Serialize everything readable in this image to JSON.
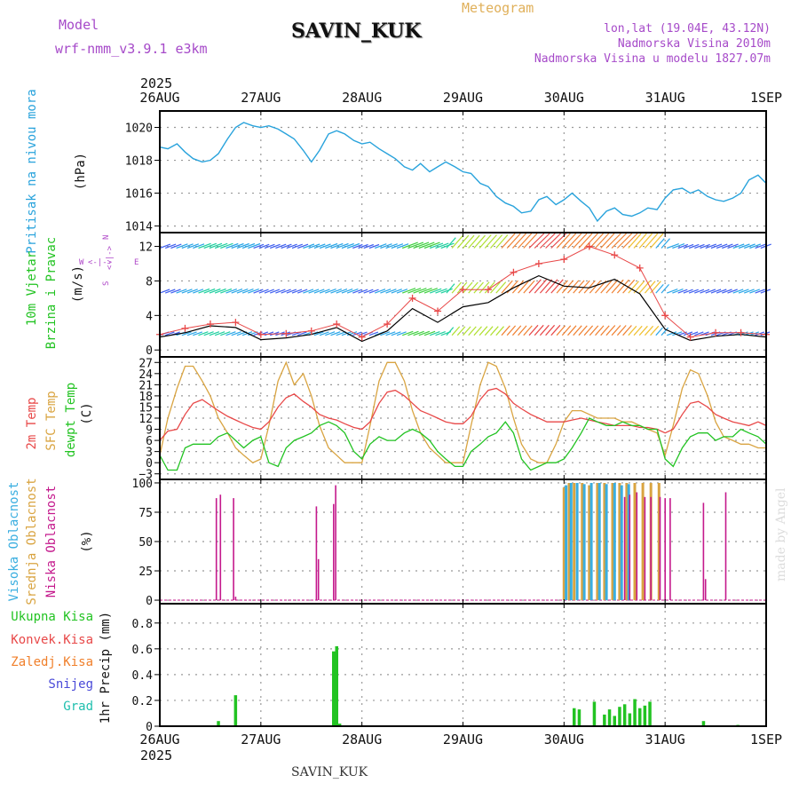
{
  "header": {
    "model_label": "Model",
    "model_value": "wrf-nmm_v3.9.1 e3km",
    "title": "SAVIN_KUK",
    "subtitle": "Meteogram",
    "coords": "lon,lat (19.04E, 43.12N)",
    "altitude": "Nadmorska Visina 2010m",
    "model_altitude": "Nadmorska Visina u modelu 1827.07m",
    "footer_station": "SAVIN_KUK",
    "credit": "made by Angel"
  },
  "colors": {
    "pressure": "#29a3dc",
    "temp2m": "#e84848",
    "sfc_temp": "#d9a441",
    "dewpt": "#22c322",
    "high_cloud": "#3aaee0",
    "mid_cloud": "#d9a441",
    "low_cloud": "#c4198c",
    "total_precip": "#22c322",
    "conv_precip": "#e84848",
    "frozen_precip": "#f07f2a",
    "snow": "#4a4ad8",
    "hail": "#1fbfae",
    "wind_speed": "#000000",
    "wind_gust": "#e84848",
    "direction_label": "#b04ac9"
  },
  "time_axis": {
    "year": "2025",
    "labels": [
      "26AUG",
      "27AUG",
      "28AUG",
      "29AUG",
      "30AUG",
      "31AUG",
      "1SEP"
    ],
    "days": [
      0,
      1,
      2,
      3,
      4,
      5,
      6
    ]
  },
  "chart_data": [
    {
      "type": "line",
      "name": "pressure",
      "ylabel_1": "Pritisak na nivou mora",
      "ylabel_2": "(hPa)",
      "ylim": [
        1013.6,
        1021.0
      ],
      "ticks": [
        1014,
        1016,
        1018,
        1020
      ],
      "x": [
        0,
        0.08,
        0.17,
        0.25,
        0.33,
        0.42,
        0.5,
        0.58,
        0.67,
        0.75,
        0.83,
        0.92,
        1.0,
        1.08,
        1.17,
        1.25,
        1.33,
        1.42,
        1.5,
        1.58,
        1.67,
        1.75,
        1.83,
        1.92,
        2.0,
        2.08,
        2.17,
        2.25,
        2.33,
        2.42,
        2.5,
        2.58,
        2.67,
        2.75,
        2.83,
        2.92,
        3.0,
        3.08,
        3.17,
        3.25,
        3.33,
        3.42,
        3.5,
        3.58,
        3.67,
        3.75,
        3.83,
        3.92,
        4.0,
        4.08,
        4.17,
        4.25,
        4.33,
        4.42,
        4.5,
        4.58,
        4.67,
        4.75,
        4.83,
        4.92,
        5.0,
        5.08,
        5.17,
        5.25,
        5.33,
        5.42,
        5.5,
        5.58,
        5.67,
        5.75,
        5.83,
        5.92,
        6.0
      ],
      "values": [
        1018.8,
        1018.7,
        1019.0,
        1018.5,
        1018.1,
        1017.9,
        1018.0,
        1018.4,
        1019.3,
        1020.0,
        1020.3,
        1020.1,
        1020.0,
        1020.1,
        1019.9,
        1019.6,
        1019.3,
        1018.6,
        1017.9,
        1018.6,
        1019.6,
        1019.8,
        1019.6,
        1019.2,
        1019.0,
        1019.1,
        1018.7,
        1018.4,
        1018.1,
        1017.6,
        1017.4,
        1017.8,
        1017.3,
        1017.6,
        1017.9,
        1017.6,
        1017.3,
        1017.2,
        1016.6,
        1016.4,
        1015.8,
        1015.4,
        1015.2,
        1014.8,
        1014.9,
        1015.6,
        1015.8,
        1015.3,
        1015.6,
        1016.0,
        1015.5,
        1015.1,
        1014.3,
        1014.9,
        1015.1,
        1014.7,
        1014.6,
        1014.8,
        1015.1,
        1015.0,
        1015.7,
        1016.2,
        1016.3,
        1016.0,
        1016.2,
        1015.8,
        1015.6,
        1015.5,
        1015.7,
        1016.0,
        1016.8,
        1017.1,
        1016.6
      ]
    },
    {
      "type": "line",
      "name": "wind",
      "ylabel_1": "10m Vjetar",
      "ylabel_2": "Brzina i Pravac",
      "ylabel_3": "(m/s)",
      "compass_n": "N",
      "compass_w": "W",
      "compass_e": "E",
      "compass_s": "S",
      "ylim": [
        -0.8,
        13.6
      ],
      "ticks": [
        0,
        4,
        8,
        12
      ],
      "x": [
        0,
        0.25,
        0.5,
        0.75,
        1.0,
        1.25,
        1.5,
        1.75,
        2.0,
        2.25,
        2.5,
        2.75,
        3.0,
        3.25,
        3.5,
        3.75,
        4.0,
        4.25,
        4.5,
        4.75,
        5.0,
        5.25,
        5.5,
        5.75,
        6.0
      ],
      "speed": [
        1.5,
        2.0,
        2.8,
        2.6,
        1.2,
        1.4,
        1.8,
        2.6,
        1.0,
        2.2,
        4.8,
        3.2,
        5.0,
        5.5,
        7.2,
        8.6,
        7.4,
        7.2,
        8.2,
        6.5,
        2.4,
        1.1,
        1.6,
        1.8,
        1.5
      ],
      "gust": [
        1.8,
        2.5,
        3.0,
        3.2,
        1.8,
        1.9,
        2.2,
        3.0,
        1.5,
        3.0,
        6.0,
        4.5,
        7.0,
        7.0,
        9.0,
        10.0,
        10.5,
        12.0,
        11.0,
        9.5,
        4.0,
        1.5,
        2.0,
        2.0,
        1.8
      ],
      "barb_levels": [
        1.7,
        6.6,
        11.8
      ]
    },
    {
      "type": "line",
      "name": "temperature",
      "ylabel_1": "2m Temp",
      "ylabel_2": "SFC Temp",
      "ylabel_3": "dewpt Temp",
      "ylabel_4": "(C)",
      "ylim": [
        -4.5,
        28.5
      ],
      "ticks": [
        -3,
        0,
        3,
        6,
        9,
        12,
        15,
        18,
        21,
        24,
        27
      ],
      "x": [
        0,
        0.08,
        0.17,
        0.25,
        0.33,
        0.42,
        0.5,
        0.58,
        0.67,
        0.75,
        0.83,
        0.92,
        1.0,
        1.08,
        1.17,
        1.25,
        1.33,
        1.42,
        1.5,
        1.58,
        1.67,
        1.75,
        1.83,
        1.92,
        2.0,
        2.08,
        2.17,
        2.25,
        2.33,
        2.42,
        2.5,
        2.58,
        2.67,
        2.75,
        2.83,
        2.92,
        3.0,
        3.08,
        3.17,
        3.25,
        3.33,
        3.42,
        3.5,
        3.58,
        3.67,
        3.75,
        3.83,
        3.92,
        4.0,
        4.08,
        4.17,
        4.25,
        4.33,
        4.42,
        4.5,
        4.58,
        4.67,
        4.75,
        4.83,
        4.92,
        5.0,
        5.08,
        5.17,
        5.25,
        5.33,
        5.42,
        5.5,
        5.58,
        5.67,
        5.75,
        5.83,
        5.92,
        6.0
      ],
      "temp2m": [
        6,
        8.5,
        9,
        13,
        16,
        17,
        15.5,
        14,
        12.5,
        11.5,
        10.5,
        9.5,
        9,
        11,
        15,
        17.5,
        18.5,
        16.5,
        15,
        13,
        12,
        11.5,
        10.5,
        9.5,
        9,
        11,
        16,
        19,
        19.5,
        18,
        16,
        14,
        13,
        12,
        11,
        10.5,
        10.5,
        12.5,
        17,
        19.5,
        20,
        18.5,
        16,
        14.5,
        13,
        12,
        11,
        11,
        11,
        11.5,
        12,
        11.5,
        11,
        10.5,
        10,
        10,
        10,
        9.5,
        9.5,
        9,
        8,
        9,
        13,
        16,
        16.5,
        15,
        13,
        12,
        11,
        10.5,
        10,
        11,
        10
      ],
      "sfc_temp": [
        2,
        12,
        20,
        26,
        26,
        22,
        18,
        12,
        8,
        4,
        2,
        0,
        1,
        10,
        22,
        27,
        21,
        24,
        18,
        10,
        4,
        2,
        0,
        0,
        0,
        10,
        22,
        27,
        27,
        22,
        14,
        8,
        4,
        2,
        0,
        0,
        0,
        10,
        21,
        27,
        26,
        20,
        12,
        5,
        1,
        0,
        0,
        5,
        11,
        14,
        14,
        13,
        12,
        12,
        12,
        11,
        11,
        10,
        9,
        8,
        2,
        10,
        20,
        25,
        24,
        18,
        11,
        7,
        6,
        5,
        5,
        4,
        4
      ],
      "dewpt": [
        2,
        -2,
        -2,
        4,
        5,
        5,
        5,
        7,
        8,
        6,
        4,
        6,
        7,
        0,
        -1,
        4,
        6,
        7,
        8,
        10,
        11,
        10,
        8,
        3,
        1,
        5,
        7,
        6,
        6,
        8,
        9,
        8,
        6,
        3,
        1,
        -1,
        -1,
        3,
        5,
        7,
        8,
        11,
        8,
        1,
        -2,
        -1,
        0,
        0,
        1,
        4,
        8,
        12,
        11,
        10,
        10,
        11,
        10,
        10,
        9,
        9,
        1,
        -1,
        4,
        7,
        8,
        8,
        6,
        7,
        7,
        9,
        8,
        7,
        5
      ]
    },
    {
      "type": "bar",
      "name": "cloud_cover",
      "ylabel_1": "Visoka Oblacnost",
      "ylabel_2": "Srednja Oblacnost",
      "ylabel_3": "Niska Oblacnost",
      "ylabel_4": "(%)",
      "ylim": [
        -3,
        103
      ],
      "ticks": [
        0,
        25,
        50,
        75,
        100
      ],
      "low_x": [
        0.56,
        0.6,
        0.73,
        0.75,
        1.55,
        1.57,
        1.72,
        1.74,
        4.6,
        4.65,
        4.72,
        4.8,
        4.86,
        4.95,
        5.0,
        5.05,
        5.38,
        5.4,
        5.6
      ],
      "low_values": [
        87,
        90,
        87,
        3,
        80,
        35,
        82,
        98,
        88,
        90,
        92,
        88,
        88,
        88,
        87,
        87,
        83,
        18,
        92
      ],
      "mid_x": [
        4.0,
        4.05,
        4.1,
        4.18,
        4.25,
        4.33,
        4.4,
        4.48,
        4.55,
        4.62,
        4.7,
        4.78,
        4.86,
        4.94
      ],
      "mid_values": [
        96,
        100,
        100,
        100,
        98,
        100,
        100,
        100,
        100,
        100,
        100,
        100,
        100,
        100
      ],
      "high_x": [
        4.02,
        4.07,
        4.13,
        4.2,
        4.27,
        4.35,
        4.42,
        4.5,
        4.57,
        4.64
      ],
      "high_values": [
        98,
        100,
        100,
        99,
        100,
        100,
        99,
        100,
        98,
        99
      ]
    },
    {
      "type": "bar",
      "name": "precipitation",
      "legend_1": "Ukupna Kisa",
      "legend_2": "Konvek.Kisa",
      "legend_3": "Zaledj.Kisa",
      "legend_4": "Snijeg",
      "legend_5": "Grad",
      "ylabel": "1hr Precip (mm)",
      "ylim": [
        0,
        0.95
      ],
      "ticks": [
        0,
        0.2,
        0.4,
        0.6,
        0.8
      ],
      "x": [
        0.58,
        0.75,
        1.72,
        1.75,
        1.78,
        4.1,
        4.15,
        4.3,
        4.4,
        4.45,
        4.5,
        4.55,
        4.6,
        4.65,
        4.7,
        4.75,
        4.8,
        4.85,
        5.38,
        5.72
      ],
      "values": [
        0.04,
        0.24,
        0.58,
        0.62,
        0.02,
        0.14,
        0.13,
        0.19,
        0.09,
        0.13,
        0.08,
        0.15,
        0.17,
        0.1,
        0.21,
        0.14,
        0.16,
        0.19,
        0.04,
        0.01
      ]
    }
  ]
}
